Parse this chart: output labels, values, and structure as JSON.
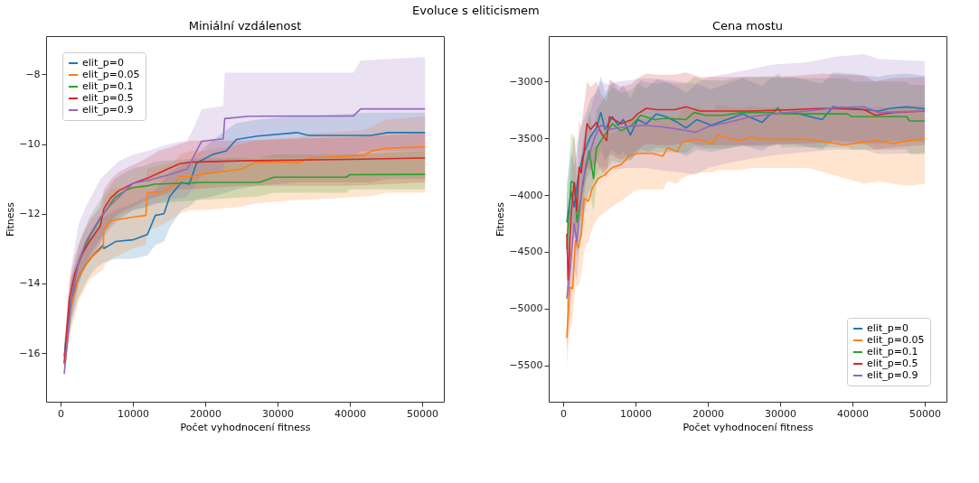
{
  "chart_data": [
    {
      "type": "line",
      "title": "Miniální vzdálenost",
      "xlabel": "Počet vyhodnocení fitness",
      "ylabel": "Fitness",
      "annotations": [
        "Evoluce s eliticismem"
      ],
      "xlim": [
        -2000,
        53000
      ],
      "ylim": [
        -17.4,
        -6.9
      ],
      "xticks": [
        0,
        10000,
        20000,
        30000,
        40000,
        50000
      ],
      "yticks": [
        -16,
        -14,
        -12,
        -10,
        -8
      ],
      "grid": false,
      "legend": "top left",
      "series": [
        {
          "name": "elit_p=0",
          "color": "#1f77b4",
          "x": [
            500,
            1400,
            2500,
            3700,
            4700,
            5900,
            6000,
            7600,
            10000,
            12000,
            13100,
            14300,
            15100,
            16700,
            17800,
            18800,
            21000,
            22900,
            24300,
            27200,
            32700,
            34300,
            42900,
            45300,
            50400
          ],
          "values": [
            -16.1,
            -14.5,
            -13.8,
            -13.4,
            -13.15,
            -12.9,
            -13.0,
            -12.8,
            -12.75,
            -12.6,
            -12.05,
            -12.0,
            -11.5,
            -11.1,
            -11.15,
            -10.55,
            -10.3,
            -10.2,
            -9.87,
            -9.77,
            -9.67,
            -9.75,
            -9.75,
            -9.67,
            -9.67
          ],
          "lower": [
            -16.5,
            -15.2,
            -14.4,
            -13.9,
            -13.6,
            -13.4,
            -13.4,
            -13.3,
            -13.3,
            -13.2,
            -12.9,
            -12.8,
            -12.4,
            -11.9,
            -11.8,
            -11.6,
            -11.5,
            -11.4,
            -11.3,
            -11.2,
            -11.1,
            -11.1,
            -11.1,
            -11.0,
            -11.0
          ],
          "upper": [
            -15.7,
            -13.9,
            -13.2,
            -12.7,
            -12.4,
            -12.1,
            -12.1,
            -11.9,
            -11.7,
            -11.5,
            -11.3,
            -11.0,
            -10.8,
            -10.6,
            -10.5,
            -10.3,
            -9.9,
            -9.6,
            -9.4,
            -9.3,
            -9.2,
            -9.2,
            -9.1,
            -9.1,
            -9.1
          ]
        },
        {
          "name": "elit_p=0.05",
          "color": "#ff7f0e",
          "x": [
            500,
            1400,
            2500,
            4000,
            5900,
            6000,
            7000,
            10000,
            11800,
            12000,
            14200,
            15800,
            16500,
            18000,
            20000,
            25000,
            27000,
            33000,
            34500,
            42000,
            43000,
            45000,
            50400
          ],
          "values": [
            -16.3,
            -14.75,
            -13.8,
            -13.3,
            -12.95,
            -12.46,
            -12.2,
            -12.1,
            -12.05,
            -11.4,
            -11.37,
            -11.17,
            -10.93,
            -10.93,
            -10.85,
            -10.72,
            -10.52,
            -10.52,
            -10.4,
            -10.32,
            -10.2,
            -10.12,
            -10.08
          ],
          "lower": [
            -16.7,
            -15.4,
            -14.5,
            -13.9,
            -13.6,
            -13.5,
            -13.3,
            -13.0,
            -12.9,
            -12.5,
            -12.3,
            -12.1,
            -12.0,
            -11.9,
            -11.9,
            -11.8,
            -11.7,
            -11.6,
            -11.6,
            -11.5,
            -11.5,
            -11.4,
            -11.4
          ],
          "upper": [
            -15.9,
            -14.0,
            -13.2,
            -12.7,
            -12.3,
            -11.6,
            -11.3,
            -11.2,
            -11.1,
            -10.7,
            -10.6,
            -10.5,
            -10.3,
            -10.2,
            -10.2,
            -10.0,
            -9.9,
            -9.8,
            -9.7,
            -9.6,
            -9.5,
            -9.3,
            -9.2
          ]
        },
        {
          "name": "elit_p=0.1",
          "color": "#2ca02c",
          "x": [
            500,
            1500,
            2500,
            4000,
            5500,
            7500,
            9000,
            10000,
            12000,
            13000,
            20000,
            27500,
            29500,
            39500,
            40000,
            50400
          ],
          "values": [
            null,
            null,
            -13.4,
            -12.66,
            -12.14,
            -11.53,
            -11.33,
            -11.25,
            -11.2,
            -11.15,
            -11.1,
            -11.1,
            -10.95,
            -10.95,
            -10.88,
            -10.87
          ],
          "lower": [
            -16.6,
            -15.0,
            -14.0,
            -13.2,
            -12.7,
            -12.2,
            -12.0,
            -11.9,
            -11.8,
            -11.7,
            -11.6,
            -11.5,
            -11.4,
            -11.4,
            -11.3,
            -11.3
          ],
          "upper": [
            -15.8,
            -13.9,
            -12.9,
            -12.1,
            -11.6,
            -11.0,
            -10.8,
            -10.7,
            -10.6,
            -10.5,
            -10.4,
            -10.4,
            -10.3,
            -10.3,
            -10.3,
            -10.2
          ]
        },
        {
          "name": "elit_p=0.5",
          "color": "#d62728",
          "x": [
            500,
            1200,
            2000,
            3000,
            4000,
            5500,
            6000,
            7000,
            8000,
            10000,
            12000,
            13500,
            15000,
            16500,
            18000,
            25000,
            40000,
            50400
          ],
          "values": [
            -16.3,
            -14.45,
            -13.7,
            -13.15,
            -12.8,
            -12.35,
            -11.85,
            -11.53,
            -11.35,
            -11.13,
            -10.98,
            -10.84,
            -10.7,
            -10.56,
            -10.52,
            -10.48,
            -10.44,
            -10.4
          ],
          "lower": [
            -16.6,
            -15.0,
            -14.2,
            -13.7,
            -13.3,
            -12.9,
            -12.5,
            -12.2,
            -12.0,
            -11.8,
            -11.6,
            -11.5,
            -11.4,
            -11.3,
            -11.3,
            -11.2,
            -11.2,
            -11.1
          ],
          "upper": [
            -15.9,
            -13.9,
            -13.2,
            -12.6,
            -12.2,
            -11.8,
            -11.3,
            -11.0,
            -10.8,
            -10.6,
            -10.4,
            -10.2,
            -10.1,
            -10.0,
            -9.9,
            -9.9,
            -9.8,
            -9.7
          ]
        },
        {
          "name": "elit_p=0.9",
          "color": "#9467bd",
          "x": [
            500,
            1500,
            2500,
            3500,
            5500,
            7000,
            8000,
            10000,
            12000,
            15000,
            17500,
            18500,
            19500,
            22500,
            22700,
            26000,
            40500,
            41500,
            50400
          ],
          "values": [
            -16.6,
            -14.45,
            -13.4,
            -12.8,
            -12.1,
            -11.73,
            -11.53,
            -11.13,
            -11.05,
            -10.88,
            -10.72,
            -10.32,
            -9.92,
            -9.85,
            -9.27,
            -9.2,
            -9.19,
            -8.99,
            -8.99
          ],
          "lower": [
            -16.6,
            -15.0,
            -14.0,
            -13.4,
            -12.8,
            -12.4,
            -12.2,
            -11.9,
            -11.8,
            -11.6,
            -11.5,
            -11.2,
            -10.9,
            -10.8,
            -10.5,
            -10.4,
            -10.4,
            -10.2,
            -10.2
          ],
          "upper": [
            -16.2,
            -13.5,
            -12.3,
            -11.8,
            -11.0,
            -10.7,
            -10.5,
            -10.3,
            -10.2,
            -10.0,
            -9.9,
            -9.5,
            -9.0,
            -8.9,
            -7.95,
            -7.95,
            -7.95,
            -7.6,
            -7.5
          ]
        }
      ]
    },
    {
      "type": "line",
      "title": "Cena mostu",
      "xlabel": "Počet vyhodnocení fitness",
      "ylabel": "Fitness",
      "xlim": [
        -2000,
        53000
      ],
      "ylim": [
        -5820,
        -2600
      ],
      "xticks": [
        0,
        10000,
        20000,
        30000,
        40000,
        50000
      ],
      "yticks": [
        -5500,
        -5000,
        -4500,
        -4000,
        -3500,
        -3000
      ],
      "grid": false,
      "legend": "bottom right",
      "series": [
        {
          "name": "elit_p=0",
          "color": "#1f77b4",
          "x": [
            500,
            1100,
            1500,
            2100,
            2700,
            3300,
            3800,
            4600,
            5200,
            5800,
            6800,
            7600,
            8300,
            9300,
            10300,
            11500,
            12900,
            14200,
            15800,
            17000,
            18500,
            20500,
            22100,
            24800,
            27500,
            28700,
            31900,
            35800,
            37300,
            39700,
            43600,
            45200,
            47500,
            50000
          ],
          "values": [
            -4240,
            -3968,
            -4104,
            -3831,
            -3657,
            -3558,
            -3484,
            -3409,
            -3273,
            -3422,
            -3310,
            -3385,
            -3335,
            -3471,
            -3335,
            -3372,
            -3285,
            -3310,
            -3360,
            -3409,
            -3335,
            -3385,
            -3347,
            -3285,
            -3360,
            -3285,
            -3273,
            -3335,
            -3223,
            -3236,
            -3260,
            -3236,
            -3223,
            -3241
          ],
          "lower": [
            -4600,
            -4300,
            -4400,
            -4150,
            -3950,
            -3850,
            -3780,
            -3700,
            -3600,
            -3700,
            -3600,
            -3650,
            -3620,
            -3700,
            -3620,
            -3640,
            -3580,
            -3590,
            -3620,
            -3660,
            -3600,
            -3620,
            -3600,
            -3560,
            -3610,
            -3560,
            -3550,
            -3600,
            -3520,
            -3530,
            -3550,
            -3530,
            -3520,
            -3530
          ],
          "upper": [
            -3900,
            -3600,
            -3750,
            -3500,
            -3350,
            -3250,
            -3150,
            -3100,
            -2950,
            -3100,
            -3000,
            -3080,
            -3030,
            -3150,
            -3020,
            -3060,
            -2980,
            -3000,
            -3050,
            -3100,
            -3020,
            -3070,
            -3030,
            -2970,
            -3040,
            -2970,
            -2960,
            -3020,
            -2920,
            -2930,
            -2960,
            -2940,
            -2930,
            -2950
          ]
        },
        {
          "name": "elit_p=0.05",
          "color": "#ff7f0e",
          "x": [
            500,
            900,
            1300,
            1700,
            2100,
            2500,
            2900,
            3500,
            4000,
            4800,
            5800,
            6800,
            8000,
            9100,
            10300,
            12300,
            13800,
            14400,
            15800,
            16400,
            18500,
            20700,
            21300,
            22800,
            24400,
            26000,
            27200,
            33800,
            38900,
            41600,
            43600,
            45600,
            47900,
            50000
          ],
          "values": [
            -5258,
            -4811,
            -4824,
            -4402,
            -4464,
            -4352,
            -4030,
            -4054,
            -3943,
            -3856,
            -3819,
            -3757,
            -3732,
            -3657,
            -3633,
            -3633,
            -3657,
            -3583,
            -3620,
            -3533,
            -3509,
            -3546,
            -3471,
            -3496,
            -3521,
            -3489,
            -3509,
            -3509,
            -3558,
            -3533,
            -3521,
            -3546,
            -3521,
            -3504
          ],
          "lower": [
            -5500,
            -5200,
            -5100,
            -4800,
            -4800,
            -4700,
            -4500,
            -4400,
            -4300,
            -4200,
            -4150,
            -4100,
            -4050,
            -4000,
            -3950,
            -3950,
            -3950,
            -3880,
            -3900,
            -3850,
            -3800,
            -3800,
            -3780,
            -3780,
            -3780,
            -3760,
            -3760,
            -3760,
            -3850,
            -3900,
            -3880,
            -3900,
            -3920,
            -3900
          ],
          "upper": [
            -4950,
            -4400,
            -4500,
            -4000,
            -4100,
            -4000,
            -3700,
            -3700,
            -3600,
            -3550,
            -3500,
            -3450,
            -3420,
            -3350,
            -3330,
            -3330,
            -3350,
            -3300,
            -3320,
            -3250,
            -3230,
            -3260,
            -3200,
            -3220,
            -3240,
            -3210,
            -3230,
            -3230,
            -3260,
            -3230,
            -3220,
            -3240,
            -3220,
            -3200
          ]
        },
        {
          "name": "elit_p=0.1",
          "color": "#2ca02c",
          "x": [
            500,
            1100,
            1600,
            1900,
            2500,
            3100,
            3600,
            4200,
            4600,
            5600,
            6800,
            8000,
            9500,
            10700,
            12700,
            14200,
            17000,
            18100,
            19700,
            22100,
            24800,
            29100,
            29700,
            30300,
            33000,
            39300,
            39900,
            47500,
            47900,
            50000
          ],
          "values": [
            -4476,
            -3881,
            -3893,
            -4240,
            -4005,
            -3757,
            -3608,
            -3856,
            -3583,
            -3484,
            -3372,
            -3434,
            -3385,
            -3298,
            -3335,
            -3323,
            -3335,
            -3273,
            -3298,
            -3298,
            -3273,
            -3273,
            -3231,
            -3285,
            -3285,
            -3285,
            -3310,
            -3310,
            -3347,
            -3347
          ],
          "lower": [
            -4900,
            -4300,
            -4250,
            -4550,
            -4350,
            -4100,
            -3950,
            -4150,
            -3900,
            -3800,
            -3700,
            -3720,
            -3680,
            -3600,
            -3630,
            -3620,
            -3630,
            -3570,
            -3590,
            -3590,
            -3570,
            -3570,
            -3540,
            -3580,
            -3580,
            -3580,
            -3600,
            -3600,
            -3640,
            -3640
          ],
          "upper": [
            -4050,
            -3450,
            -3500,
            -3900,
            -3650,
            -3400,
            -3250,
            -3500,
            -3250,
            -3150,
            -3050,
            -3100,
            -3070,
            -2990,
            -3020,
            -3010,
            -3020,
            -2960,
            -2990,
            -2990,
            -2960,
            -2960,
            -2930,
            -2970,
            -2970,
            -2970,
            -3000,
            -3000,
            -3030,
            -3030
          ]
        },
        {
          "name": "elit_p=0.5",
          "color": "#d62728",
          "x": [
            500,
            700,
            1100,
            1500,
            1900,
            2200,
            2500,
            2900,
            3300,
            3800,
            4600,
            5200,
            6000,
            6400,
            8000,
            9500,
            10300,
            11500,
            13000,
            15400,
            17000,
            18900,
            26000,
            31900,
            35800,
            41600,
            43200,
            45600,
            50000
          ],
          "values": [
            -4340,
            -4749,
            -4179,
            -3893,
            -4141,
            -3757,
            -3806,
            -3608,
            -3372,
            -3422,
            -3360,
            -3447,
            -3521,
            -3310,
            -3372,
            -3335,
            -3285,
            -3236,
            -3248,
            -3248,
            -3223,
            -3260,
            -3260,
            -3248,
            -3236,
            -3248,
            -3298,
            -3273,
            -3260
          ],
          "lower": [
            -4700,
            -5150,
            -4600,
            -4300,
            -4500,
            -4150,
            -4200,
            -4000,
            -3750,
            -3780,
            -3700,
            -3780,
            -3850,
            -3640,
            -3690,
            -3650,
            -3600,
            -3550,
            -3560,
            -3560,
            -3530,
            -3560,
            -3560,
            -3550,
            -3540,
            -3550,
            -3600,
            -3580,
            -3560
          ],
          "upper": [
            -3950,
            -4350,
            -3750,
            -3450,
            -3750,
            -3350,
            -3400,
            -3200,
            -3000,
            -3050,
            -3000,
            -3100,
            -3180,
            -2980,
            -3050,
            -3020,
            -2970,
            -2930,
            -2940,
            -2940,
            -2920,
            -2960,
            -2960,
            -2950,
            -2930,
            -2950,
            -3000,
            -2970,
            -2960
          ]
        },
        {
          "name": "elit_p=0.9",
          "color": "#9467bd",
          "x": [
            500,
            900,
            1500,
            1900,
            2300,
            2700,
            3300,
            3800,
            4400,
            5200,
            6400,
            7600,
            9100,
            11100,
            13400,
            16200,
            18300,
            20100,
            22800,
            26000,
            29100,
            33800,
            37700,
            41600,
            43600,
            50000
          ],
          "values": [
            -4910,
            -4700,
            -4253,
            -4414,
            -4129,
            -3881,
            -3732,
            -3608,
            -3484,
            -3385,
            -3422,
            -3409,
            -3397,
            -3385,
            -3397,
            -3422,
            -3447,
            -3397,
            -3360,
            -3310,
            -3285,
            -3260,
            -3231,
            -3223,
            -3273,
            -3260
          ],
          "lower": [
            -5350,
            -5100,
            -4650,
            -4750,
            -4450,
            -4200,
            -4050,
            -3950,
            -3850,
            -3750,
            -3780,
            -3770,
            -3760,
            -3760,
            -3780,
            -3800,
            -3820,
            -3760,
            -3720,
            -3680,
            -3650,
            -3620,
            -3600,
            -3600,
            -3640,
            -3630
          ],
          "upper": [
            -4450,
            -4300,
            -3850,
            -4050,
            -3800,
            -3550,
            -3400,
            -3250,
            -3100,
            -3000,
            -3030,
            -3000,
            -2990,
            -2970,
            -2980,
            -3000,
            -3020,
            -2960,
            -2930,
            -2890,
            -2850,
            -2830,
            -2780,
            -2760,
            -2800,
            -2820
          ]
        }
      ]
    }
  ]
}
